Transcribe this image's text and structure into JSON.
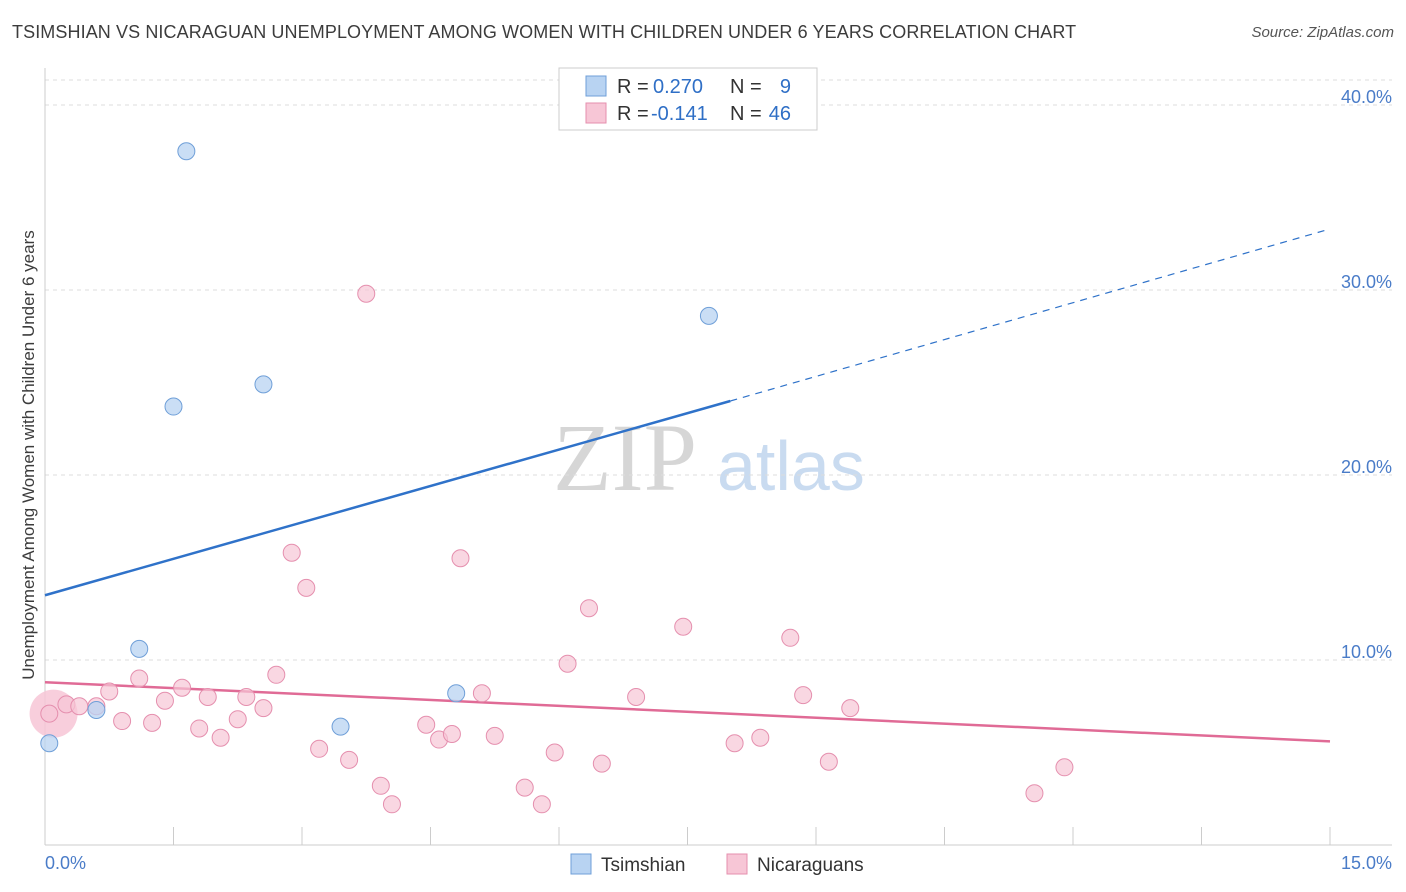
{
  "title": "TSIMSHIAN VS NICARAGUAN UNEMPLOYMENT AMONG WOMEN WITH CHILDREN UNDER 6 YEARS CORRELATION CHART",
  "source": "Source: ZipAtlas.com",
  "watermark": {
    "zip": "ZIP",
    "atlas": "atlas"
  },
  "colors": {
    "tsimshian_fill": "#b8d3f2",
    "tsimshian_stroke": "#6f9fd8",
    "tsimshian_line": "#2f72c9",
    "nicaraguan_fill": "#f7c6d6",
    "nicaraguan_stroke": "#e58fae",
    "nicaraguan_line": "#e06b96",
    "tick_label": "#4a7cc8",
    "grid": "#dddddd"
  },
  "legend": {
    "rows": [
      {
        "r_label": "R =",
        "r_value": "0.270",
        "n_label": "N =",
        "n_value": "9"
      },
      {
        "r_label": "R =",
        "r_value": "-0.141",
        "n_label": "N =",
        "n_value": "46"
      }
    ]
  },
  "chart_data": {
    "type": "scatter",
    "ylabel": "Unemployment Among Women with Children Under 6 years",
    "xlim": [
      0,
      15
    ],
    "ylim": [
      0,
      42
    ],
    "x_tick_labels": [
      "0.0%",
      "15.0%"
    ],
    "y_ticks": [
      10,
      20,
      30,
      40
    ],
    "y_tick_labels": [
      "10.0%",
      "20.0%",
      "30.0%",
      "40.0%"
    ],
    "grid": "horizontal dashed",
    "legend_position": "top-center",
    "series": [
      {
        "name": "Tsimshian",
        "points": [
          [
            0.05,
            5.5
          ],
          [
            0.6,
            7.3
          ],
          [
            1.1,
            10.6
          ],
          [
            1.5,
            23.7
          ],
          [
            1.65,
            37.5
          ],
          [
            2.55,
            24.9
          ],
          [
            3.45,
            6.4
          ],
          [
            4.8,
            8.2
          ],
          [
            7.75,
            28.6
          ]
        ],
        "trend": {
          "x0": 0,
          "y0": 13.5,
          "x1": 8.0,
          "y1": 24.0,
          "dash_x1": 15,
          "dash_y1": 33.3
        }
      },
      {
        "name": "Nicaraguans",
        "points": [
          [
            0.05,
            7.1
          ],
          [
            0.25,
            7.6
          ],
          [
            0.4,
            7.5
          ],
          [
            0.6,
            7.5
          ],
          [
            0.75,
            8.3
          ],
          [
            0.9,
            6.7
          ],
          [
            1.1,
            9.0
          ],
          [
            1.25,
            6.6
          ],
          [
            1.4,
            7.8
          ],
          [
            1.6,
            8.5
          ],
          [
            1.8,
            6.3
          ],
          [
            1.9,
            8.0
          ],
          [
            2.05,
            5.8
          ],
          [
            2.25,
            6.8
          ],
          [
            2.35,
            8.0
          ],
          [
            2.55,
            7.4
          ],
          [
            2.7,
            9.2
          ],
          [
            2.88,
            15.8
          ],
          [
            3.05,
            13.9
          ],
          [
            3.2,
            5.2
          ],
          [
            3.55,
            4.6
          ],
          [
            3.75,
            29.8
          ],
          [
            3.92,
            3.2
          ],
          [
            4.05,
            2.2
          ],
          [
            4.45,
            6.5
          ],
          [
            4.6,
            5.7
          ],
          [
            4.75,
            6.0
          ],
          [
            4.85,
            15.5
          ],
          [
            5.1,
            8.2
          ],
          [
            5.25,
            5.9
          ],
          [
            5.6,
            3.1
          ],
          [
            5.8,
            2.2
          ],
          [
            5.95,
            5.0
          ],
          [
            6.1,
            9.8
          ],
          [
            6.35,
            12.8
          ],
          [
            6.5,
            4.4
          ],
          [
            6.9,
            8.0
          ],
          [
            7.45,
            11.8
          ],
          [
            8.05,
            5.5
          ],
          [
            8.35,
            5.8
          ],
          [
            8.7,
            11.2
          ],
          [
            8.85,
            8.1
          ],
          [
            9.15,
            4.5
          ],
          [
            9.4,
            7.4
          ],
          [
            11.55,
            2.8
          ],
          [
            11.9,
            4.2
          ]
        ],
        "trend": {
          "x0": 0,
          "y0": 8.8,
          "x1": 15,
          "y1": 5.6
        }
      }
    ]
  },
  "bottom_legend": [
    {
      "label": "Tsimshian",
      "key": "tsimshian"
    },
    {
      "label": "Nicaraguans",
      "key": "nicaraguan"
    }
  ]
}
